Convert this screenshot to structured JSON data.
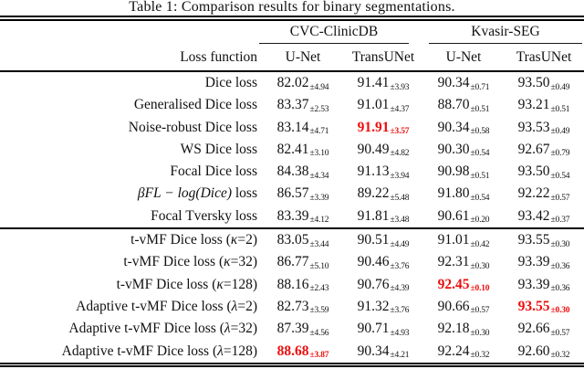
{
  "caption": "Table 1: Comparison results for binary segmentations.",
  "colors": {
    "background": "#ffffff",
    "text": "#111111",
    "highlight_red": "#ee0d0d",
    "rule": "#000000"
  },
  "table": {
    "groups": [
      "CVC-ClinicDB",
      "Kvasir-SEG"
    ],
    "col_headers": [
      "Loss function",
      "U-Net",
      "TransUNet",
      "U-Net",
      "TrasUNet"
    ],
    "rows": [
      {
        "group": 1,
        "label_parts": [
          {
            "t": "Dice loss"
          }
        ],
        "cells": [
          {
            "value": "82.02",
            "sub": "±4.94"
          },
          {
            "value": "91.41",
            "sub": "±3.93"
          },
          {
            "value": "90.34",
            "sub": "±0.71"
          },
          {
            "value": "93.50",
            "sub": "±0.49"
          }
        ]
      },
      {
        "group": 1,
        "label_parts": [
          {
            "t": "Generalised Dice loss"
          }
        ],
        "cells": [
          {
            "value": "83.37",
            "sub": "±2.53"
          },
          {
            "value": "91.01",
            "sub": "±4.37"
          },
          {
            "value": "88.70",
            "sub": "±0.51"
          },
          {
            "value": "93.21",
            "sub": "±0.51"
          }
        ]
      },
      {
        "group": 1,
        "label_parts": [
          {
            "t": "Noise-robust Dice loss"
          }
        ],
        "cells": [
          {
            "value": "83.14",
            "sub": "±4.71"
          },
          {
            "value": "91.91",
            "sub": "±3.57",
            "hl": true
          },
          {
            "value": "90.34",
            "sub": "±0.58"
          },
          {
            "value": "93.53",
            "sub": "±0.49"
          }
        ]
      },
      {
        "group": 1,
        "label_parts": [
          {
            "t": "WS Dice loss"
          }
        ],
        "cells": [
          {
            "value": "82.41",
            "sub": "±3.10"
          },
          {
            "value": "90.49",
            "sub": "±4.82"
          },
          {
            "value": "90.30",
            "sub": "±0.54"
          },
          {
            "value": "92.67",
            "sub": "±0.79"
          }
        ]
      },
      {
        "group": 1,
        "label_parts": [
          {
            "t": "Focal Dice loss"
          }
        ],
        "cells": [
          {
            "value": "84.38",
            "sub": "±4.34"
          },
          {
            "value": "91.13",
            "sub": "±3.94"
          },
          {
            "value": "90.98",
            "sub": "±0.51"
          },
          {
            "value": "93.50",
            "sub": "±0.54"
          }
        ]
      },
      {
        "group": 1,
        "label_parts": [
          {
            "t": "βFL − log(Dice)",
            "italic": true
          },
          {
            "t": " loss"
          }
        ],
        "cells": [
          {
            "value": "86.57",
            "sub": "±3.39"
          },
          {
            "value": "89.22",
            "sub": "±5.48"
          },
          {
            "value": "91.80",
            "sub": "±0.54"
          },
          {
            "value": "92.22",
            "sub": "±0.57"
          }
        ]
      },
      {
        "group": 1,
        "label_parts": [
          {
            "t": "Focal Tversky loss"
          }
        ],
        "cells": [
          {
            "value": "83.39",
            "sub": "±4.12"
          },
          {
            "value": "91.81",
            "sub": "±3.48"
          },
          {
            "value": "90.61",
            "sub": "±0.20"
          },
          {
            "value": "93.42",
            "sub": "±0.37"
          }
        ]
      },
      {
        "group": 2,
        "label_parts": [
          {
            "t": "t-vMF Dice loss ("
          },
          {
            "t": "κ",
            "italic": true
          },
          {
            "t": "=2)"
          }
        ],
        "cells": [
          {
            "value": "83.05",
            "sub": "±3.44"
          },
          {
            "value": "90.51",
            "sub": "±4.49"
          },
          {
            "value": "91.01",
            "sub": "±0.42"
          },
          {
            "value": "93.55",
            "sub": "±0.30"
          }
        ]
      },
      {
        "group": 2,
        "label_parts": [
          {
            "t": "t-vMF Dice loss ("
          },
          {
            "t": "κ",
            "italic": true
          },
          {
            "t": "=32)"
          }
        ],
        "cells": [
          {
            "value": "86.77",
            "sub": "±5.10"
          },
          {
            "value": "90.46",
            "sub": "±3.76"
          },
          {
            "value": "92.31",
            "sub": "±0.30"
          },
          {
            "value": "93.39",
            "sub": "±0.36"
          }
        ]
      },
      {
        "group": 2,
        "label_parts": [
          {
            "t": "t-vMF Dice loss ("
          },
          {
            "t": "κ",
            "italic": true
          },
          {
            "t": "=128)"
          }
        ],
        "cells": [
          {
            "value": "88.16",
            "sub": "±2.43"
          },
          {
            "value": "90.76",
            "sub": "±4.39"
          },
          {
            "value": "92.45",
            "sub": "±0.10",
            "hl": true
          },
          {
            "value": "93.39",
            "sub": "±0.36"
          }
        ]
      },
      {
        "group": 2,
        "label_parts": [
          {
            "t": "Adaptive t-vMF Dice loss ("
          },
          {
            "t": "λ",
            "italic": true
          },
          {
            "t": "=2)"
          }
        ],
        "cells": [
          {
            "value": "82.73",
            "sub": "±3.59"
          },
          {
            "value": "91.32",
            "sub": "±3.76"
          },
          {
            "value": "90.66",
            "sub": "±0.57"
          },
          {
            "value": "93.55",
            "sub": "±0.30",
            "hl": true
          }
        ]
      },
      {
        "group": 2,
        "label_parts": [
          {
            "t": "Adaptive t-vMF Dice loss ("
          },
          {
            "t": "λ",
            "italic": true
          },
          {
            "t": "=32)"
          }
        ],
        "cells": [
          {
            "value": "87.39",
            "sub": "±4.56"
          },
          {
            "value": "90.71",
            "sub": "±4.93"
          },
          {
            "value": "92.18",
            "sub": "±0.30"
          },
          {
            "value": "92.66",
            "sub": "±0.57"
          }
        ]
      },
      {
        "group": 2,
        "label_parts": [
          {
            "t": "Adaptive t-vMF Dice loss ("
          },
          {
            "t": "λ",
            "italic": true
          },
          {
            "t": "=128)"
          }
        ],
        "cells": [
          {
            "value": "88.68",
            "sub": "±3.87",
            "hl": true
          },
          {
            "value": "90.34",
            "sub": "±4.21"
          },
          {
            "value": "92.24",
            "sub": "±0.32"
          },
          {
            "value": "92.60",
            "sub": "±0.32"
          }
        ]
      }
    ]
  }
}
